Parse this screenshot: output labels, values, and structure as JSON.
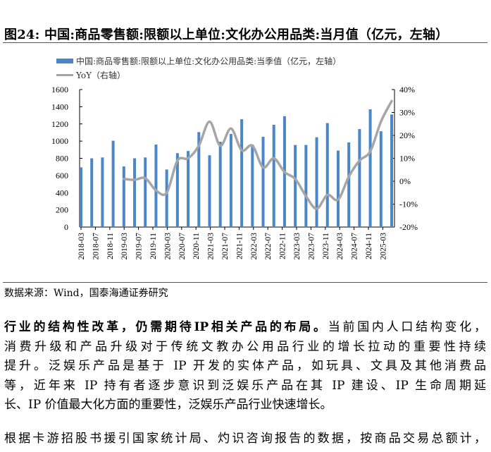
{
  "figure": {
    "title": "图24:  中国:商品零售额:限额以上单位:文化办公用品类:当月值（亿元，左轴）",
    "legend": [
      {
        "label": "中国:商品零售额:限额以上单位:文化办公用品类:当季值（亿元，左轴）",
        "color": "#4a86c8"
      },
      {
        "label": "YoY（右轴）",
        "color": "#a6a6a6"
      }
    ],
    "source": "数据来源：Wind，国泰海通证券研究"
  },
  "chart_data": {
    "type": "bar+line",
    "x_tick_labels": [
      "2018-03",
      "2018-07",
      "2018-11",
      "2019-03",
      "2019-07",
      "2019-11",
      "2020-03",
      "2020-07",
      "2020-11",
      "2021-03",
      "2021-07",
      "2021-11",
      "2022-03",
      "2022-07",
      "2022-11",
      "2023-03",
      "2023-07",
      "2023-11",
      "2024-03",
      "2024-07",
      "2024-11",
      "2025-03"
    ],
    "left_axis": {
      "ylim": [
        0,
        1600
      ],
      "ticks": [
        "0",
        "200",
        "400",
        "600",
        "800",
        "1000",
        "1200",
        "1400",
        "1600"
      ]
    },
    "right_axis": {
      "ylim": [
        -20,
        40
      ],
      "ticks": [
        "-20%",
        "-10%",
        "0%",
        "10%",
        "20%",
        "30%",
        "40%"
      ]
    },
    "series": [
      {
        "name": "中国:商品零售额:限额以上单位:文化办公用品类:当季值（亿元，左轴）",
        "type": "bar",
        "axis": "left",
        "values": [
          695,
          800,
          810,
          1005,
          705,
          800,
          810,
          960,
          670,
          860,
          885,
          1105,
          835,
          993,
          1083,
          1255,
          960,
          1050,
          1190,
          1290,
          955,
          955,
          1045,
          1210,
          890,
          985,
          1140,
          1370,
          1115,
          1310
        ]
      },
      {
        "name": "YoY（右轴）",
        "type": "line",
        "axis": "right",
        "start_index": 4,
        "values": [
          1,
          0.6,
          1.3,
          -4,
          -5,
          9,
          10,
          15.5,
          26,
          15.5,
          23,
          13.5,
          15.5,
          6,
          10,
          4,
          1,
          -6.5,
          -12,
          -6,
          -8,
          2,
          9,
          13,
          26,
          35
        ]
      }
    ],
    "colors": {
      "bar": "#4a86c8",
      "line": "#a6a6a6"
    },
    "grid": false
  },
  "body": {
    "para1_lines": [
      {
        "bold": "行业的结构性改革，仍需期待IP相关产品的布局。",
        "text": "当前国内人口结构变化，"
      },
      {
        "bold": "",
        "text": "消费升级和产品升级对于传统文教办公用品行业的增长拉动的重要性持续"
      },
      {
        "bold": "",
        "text": "提升。泛娱乐产品是基于 IP 开发的实体产品，如玩具、文具及其他消费品"
      },
      {
        "bold": "",
        "text": "等，近年来 IP 持有者逐步意识到泛娱乐产品在其 IP 建设、IP 生命周期延"
      },
      {
        "bold": "",
        "text": "长、IP 价值最大化方面的重要性，泛娱乐产品行业快速增长。"
      }
    ],
    "para2_line": "根据卡游招股书援引国家统计局、灼识咨询报告的数据，按商品交易总额计，"
  }
}
